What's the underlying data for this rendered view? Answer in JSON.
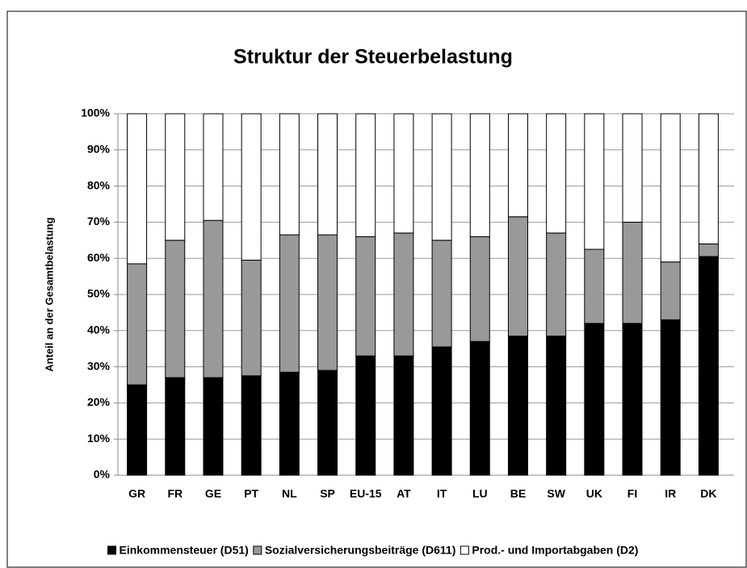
{
  "chart_data": {
    "type": "stacked-bar",
    "title": "Struktur der Steuerbelastung",
    "y_label": "Anteil an der Gesamtbelastung",
    "categories": [
      "GR",
      "FR",
      "GE",
      "PT",
      "NL",
      "SP",
      "EU-15",
      "AT",
      "IT",
      "LU",
      "BE",
      "SW",
      "UK",
      "FI",
      "IR",
      "DK"
    ],
    "series": [
      {
        "name": "Einkommensteuer (D51)",
        "color": "#000000",
        "values": [
          25,
          27,
          27,
          27.5,
          28.5,
          29,
          33,
          33,
          35.5,
          37,
          38.5,
          38.5,
          42,
          42,
          43,
          60.5
        ]
      },
      {
        "name": "Sozialversicherungsbeiträge (D611)",
        "color": "#999999",
        "values": [
          33.5,
          38,
          43.5,
          32,
          38,
          37.5,
          33,
          34,
          29.5,
          29,
          33,
          28.5,
          20.5,
          28,
          16,
          3.5
        ]
      },
      {
        "name": "Prod.- und Importabgaben (D2)",
        "color": "#ffffff",
        "values": [
          41.5,
          35,
          29.5,
          40.5,
          33.5,
          33.5,
          34,
          33,
          35,
          34,
          28.5,
          33,
          37.5,
          30,
          41,
          36
        ]
      }
    ],
    "ylim": [
      0,
      100
    ],
    "yticks": [
      {
        "value": 0,
        "label": "0%"
      },
      {
        "value": 10,
        "label": "10%"
      },
      {
        "value": 20,
        "label": "20%"
      },
      {
        "value": 30,
        "label": "30%"
      },
      {
        "value": 40,
        "label": "40%"
      },
      {
        "value": 50,
        "label": "50%"
      },
      {
        "value": 60,
        "label": "60%"
      },
      {
        "value": 70,
        "label": "70%"
      },
      {
        "value": 80,
        "label": "80%"
      },
      {
        "value": 90,
        "label": "90%"
      },
      {
        "value": 100,
        "label": "100%"
      }
    ],
    "grid": true,
    "legend": "bottom"
  }
}
